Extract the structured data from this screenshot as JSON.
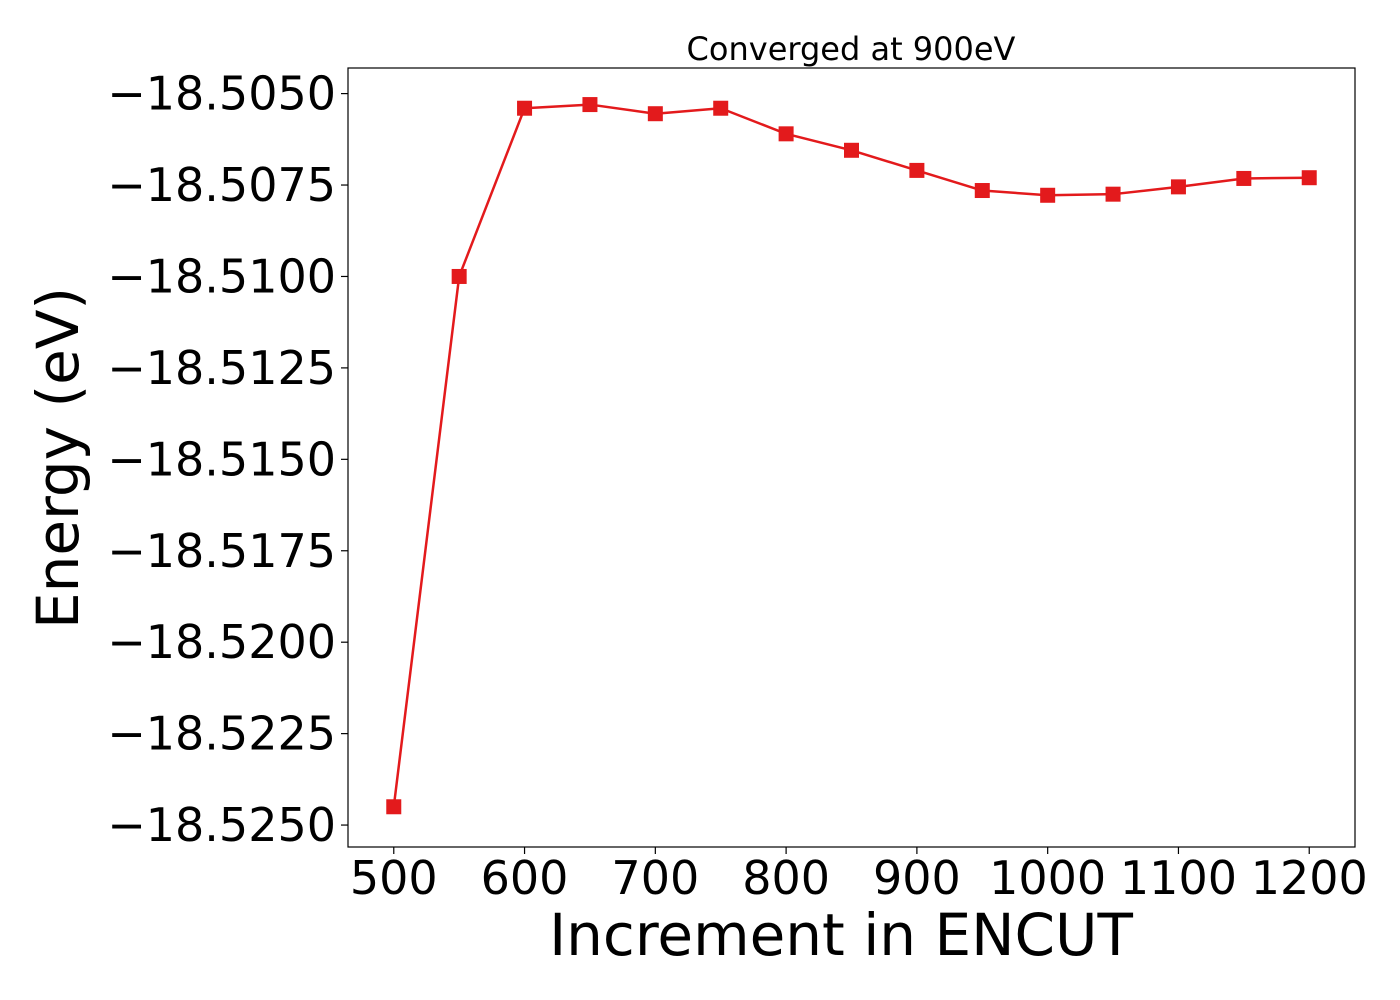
{
  "chart_data": {
    "type": "line",
    "title": "Converged at 900eV",
    "xlabel": "Increment in ENCUT",
    "ylabel": "Energy (eV)",
    "xlim": [
      465,
      1235
    ],
    "ylim": [
      -18.5256,
      -18.5043
    ],
    "x_ticks": [
      500,
      600,
      700,
      800,
      900,
      1000,
      1100,
      1200
    ],
    "x_tick_labels": [
      "500",
      "600",
      "700",
      "800",
      "900",
      "1000",
      "1100",
      "1200"
    ],
    "y_ticks": [
      -18.505,
      -18.5075,
      -18.51,
      -18.5125,
      -18.515,
      -18.5175,
      -18.52,
      -18.5225,
      -18.525
    ],
    "y_tick_labels": [
      "−18.5050",
      "−18.5075",
      "−18.5100",
      "−18.5125",
      "−18.5150",
      "−18.5175",
      "−18.5200",
      "−18.5225",
      "−18.5250"
    ],
    "grid": false,
    "series": [
      {
        "color": "#e31a1c",
        "marker": "square",
        "x": [
          500,
          550,
          600,
          650,
          700,
          750,
          800,
          850,
          900,
          950,
          1000,
          1050,
          1100,
          1150,
          1200
        ],
        "y": [
          -18.5245,
          -18.51,
          -18.5054,
          -18.5053,
          -18.50555,
          -18.5054,
          -18.5061,
          -18.50655,
          -18.5071,
          -18.50765,
          -18.50778,
          -18.50775,
          -18.50755,
          -18.50732,
          -18.5073
        ]
      }
    ]
  }
}
